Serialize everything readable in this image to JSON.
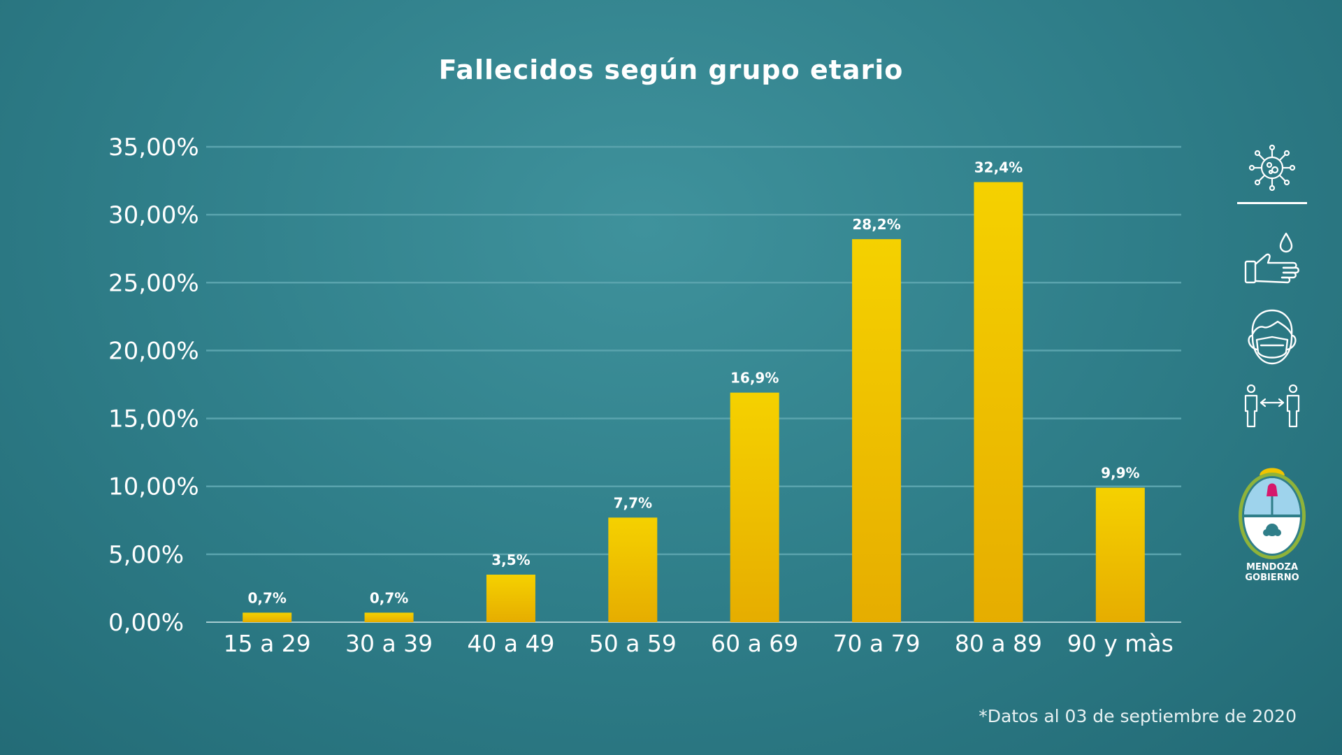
{
  "chart_data": {
    "type": "bar",
    "title": "Fallecidos según grupo etario",
    "categories": [
      "15 a 29",
      "30 a 39",
      "40 a 49",
      "50 a 59",
      "60 a 69",
      "70 a 79",
      "80 a 89",
      "90 y màs"
    ],
    "values": [
      0.7,
      0.7,
      3.5,
      7.7,
      16.9,
      28.2,
      32.4,
      9.9
    ],
    "value_labels": [
      "0,7%",
      "0,7%",
      "3,5%",
      "7,7%",
      "16,9%",
      "28,2%",
      "32,4%",
      "9,9%"
    ],
    "yticks": [
      0,
      5,
      10,
      15,
      20,
      25,
      30,
      35
    ],
    "ytick_labels": [
      "0,00%",
      "5,00%",
      "10,00%",
      "15,00%",
      "20,00%",
      "25,00%",
      "30,00%",
      "35,00%"
    ],
    "ylim": [
      0,
      35
    ],
    "xlabel": "",
    "ylabel": "",
    "grid": true,
    "bar_color": "#f0c400"
  },
  "footnote": "*Datos al 03 de septiembre de 2020",
  "sidebar": {
    "icons": [
      "virus-icon",
      "hand-washing-icon",
      "face-mask-icon",
      "social-distance-icon"
    ],
    "logo": {
      "name": "mendoza-gobierno-logo",
      "line1": "MENDOZA",
      "line2": "GOBIERNO"
    }
  }
}
